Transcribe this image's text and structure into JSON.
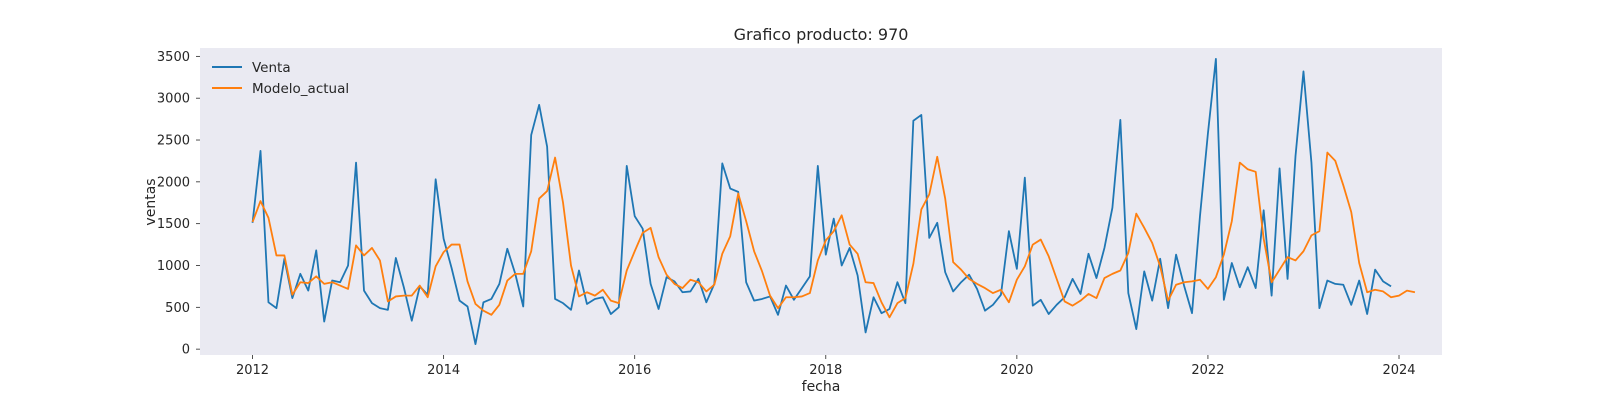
{
  "chart_data": {
    "type": "line",
    "title": "Grafico producto: 970",
    "xlabel": "fecha",
    "ylabel": "ventas",
    "xlim": [
      2011.45,
      2024.45
    ],
    "ylim": [
      -70,
      3600
    ],
    "x_ticks": [
      2012,
      2014,
      2016,
      2018,
      2020,
      2022,
      2024
    ],
    "y_ticks": [
      0,
      500,
      1000,
      1500,
      2000,
      2500,
      3000,
      3500
    ],
    "grid": false,
    "background": "#eaeaf2",
    "legend": {
      "placement": "top-left",
      "entries": [
        "Venta",
        "Modelo_actual"
      ]
    },
    "x_start": 2012.0,
    "x_step": 0.0833333333,
    "series": [
      {
        "name": "Venta",
        "color": "#1f77b4",
        "values": [
          1510,
          2370,
          560,
          490,
          1080,
          610,
          900,
          700,
          1180,
          330,
          820,
          800,
          1000,
          2230,
          700,
          550,
          490,
          470,
          1090,
          740,
          340,
          750,
          650,
          2030,
          1320,
          970,
          580,
          510,
          60,
          560,
          600,
          780,
          1200,
          900,
          510,
          2560,
          2920,
          2420,
          600,
          550,
          470,
          940,
          540,
          600,
          620,
          420,
          500,
          2190,
          1590,
          1440,
          780,
          480,
          860,
          810,
          680,
          690,
          840,
          560,
          780,
          2220,
          1920,
          1880,
          800,
          580,
          600,
          630,
          410,
          760,
          590,
          730,
          870,
          2190,
          1130,
          1560,
          1000,
          1210,
          880,
          200,
          620,
          430,
          480,
          800,
          550,
          2730,
          2800,
          1330,
          1510,
          920,
          690,
          800,
          890,
          720,
          460,
          530,
          650,
          1410,
          960,
          2050,
          520,
          590,
          420,
          530,
          620,
          840,
          660,
          1140,
          850,
          1210,
          1690,
          2740,
          670,
          240,
          930,
          580,
          1080,
          490,
          1130,
          760,
          430,
          1590,
          2580,
          3470,
          590,
          1030,
          740,
          980,
          730,
          1660,
          640,
          2160,
          840,
          2310,
          3320,
          2230,
          490,
          820,
          780,
          770,
          530,
          820,
          420,
          950,
          810,
          750
        ]
      },
      {
        "name": "Modelo_actual",
        "color": "#ff7f0e",
        "values": [
          1520,
          1770,
          1570,
          1120,
          1120,
          650,
          800,
          790,
          870,
          780,
          800,
          760,
          720,
          1240,
          1120,
          1210,
          1060,
          570,
          630,
          640,
          640,
          760,
          620,
          990,
          1160,
          1250,
          1250,
          810,
          540,
          460,
          410,
          530,
          820,
          900,
          900,
          1170,
          1800,
          1890,
          2290,
          1750,
          1000,
          630,
          680,
          640,
          710,
          580,
          550,
          940,
          1170,
          1390,
          1450,
          1100,
          890,
          780,
          730,
          830,
          800,
          690,
          770,
          1140,
          1350,
          1860,
          1530,
          1170,
          930,
          640,
          490,
          620,
          620,
          630,
          670,
          1060,
          1300,
          1410,
          1600,
          1250,
          1140,
          800,
          790,
          560,
          380,
          550,
          610,
          1020,
          1670,
          1850,
          2300,
          1800,
          1040,
          950,
          840,
          780,
          730,
          670,
          710,
          560,
          830,
          990,
          1250,
          1310,
          1110,
          840,
          570,
          520,
          580,
          660,
          610,
          850,
          900,
          940,
          1150,
          1620,
          1450,
          1270,
          990,
          580,
          770,
          800,
          810,
          830,
          720,
          860,
          1130,
          1530,
          2230,
          2150,
          2120,
          1320,
          800,
          950,
          1100,
          1060,
          1170,
          1360,
          1410,
          2350,
          2250,
          1960,
          1640,
          1030,
          680,
          710,
          690,
          620,
          640,
          700,
          680
        ]
      }
    ]
  }
}
